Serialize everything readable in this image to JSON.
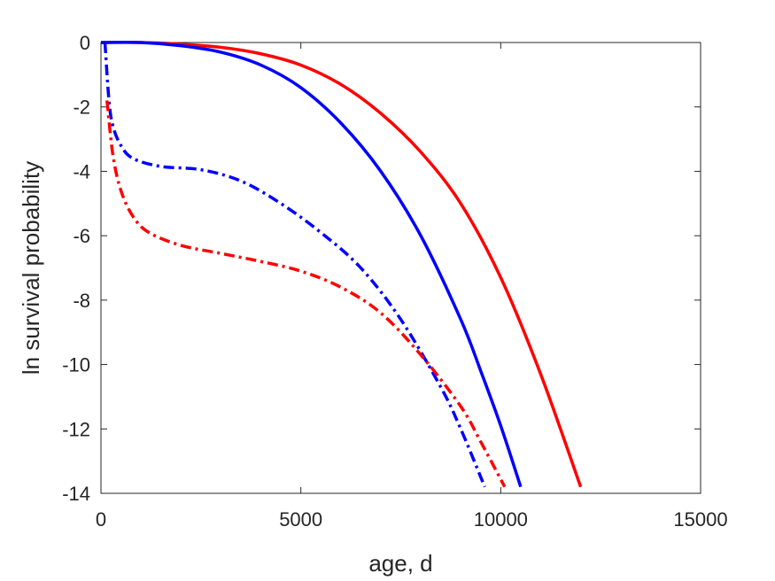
{
  "chart_data": {
    "type": "line",
    "title": "",
    "xlabel": "age, d",
    "ylabel": "ln survival probability",
    "xlim": [
      0,
      15000
    ],
    "ylim": [
      -14,
      0
    ],
    "x_ticks": [
      0,
      5000,
      10000,
      15000
    ],
    "y_ticks": [
      0,
      -2,
      -4,
      -6,
      -8,
      -10,
      -12,
      -14
    ],
    "x_tick_labels": [
      "0",
      "5000",
      "10000",
      "15000"
    ],
    "y_tick_labels": [
      "0",
      "-2",
      "-4",
      "-6",
      "-8",
      "-10",
      "-12",
      "-14"
    ],
    "grid": false,
    "legend": "none",
    "series": [
      {
        "color": "#ff0000",
        "style": "solid",
        "x": [
          0,
          1000,
          2000,
          3000,
          4000,
          5000,
          6000,
          7000,
          8000,
          9000,
          10000,
          11000,
          12000
        ],
        "y": [
          0,
          0,
          -0.05,
          -0.15,
          -0.35,
          -0.7,
          -1.3,
          -2.2,
          -3.4,
          -5.0,
          -7.3,
          -10.3,
          -13.8
        ]
      },
      {
        "color": "#0000ff",
        "style": "solid",
        "x": [
          0,
          1000,
          2000,
          3000,
          4000,
          5000,
          6000,
          7000,
          8000,
          9000,
          9500,
          10000,
          10500
        ],
        "y": [
          0,
          0,
          -0.1,
          -0.3,
          -0.7,
          -1.4,
          -2.5,
          -4.0,
          -6.0,
          -8.6,
          -10.2,
          -11.9,
          -13.8
        ]
      },
      {
        "color": "#0000ff",
        "style": "dash-dot",
        "x": [
          100,
          200,
          300,
          500,
          800,
          1500,
          2500,
          3500,
          4500,
          5500,
          6500,
          7500,
          8500,
          9000,
          9600
        ],
        "y": [
          0,
          -1.8,
          -2.6,
          -3.2,
          -3.6,
          -3.85,
          -3.95,
          -4.3,
          -5.0,
          -5.9,
          -7.0,
          -8.6,
          -10.7,
          -12.0,
          -13.8
        ]
      },
      {
        "color": "#ff0000",
        "style": "dash-dot",
        "x": [
          150,
          300,
          500,
          800,
          1200,
          2000,
          3000,
          4000,
          5000,
          6000,
          7000,
          8000,
          9000,
          9500,
          10100
        ],
        "y": [
          -1.8,
          -3.5,
          -4.6,
          -5.4,
          -5.9,
          -6.3,
          -6.55,
          -6.8,
          -7.1,
          -7.6,
          -8.4,
          -9.7,
          -11.3,
          -12.4,
          -13.8
        ]
      }
    ]
  }
}
